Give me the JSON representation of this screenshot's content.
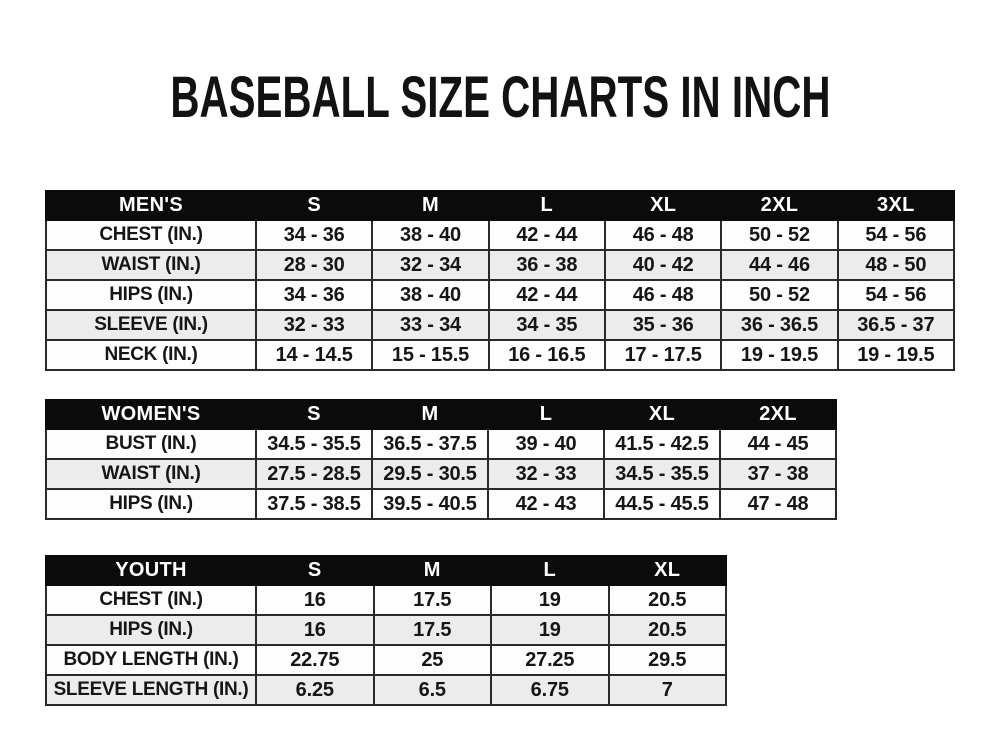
{
  "page": {
    "title": "BASEBALL SIZE CHARTS IN INCH"
  },
  "colors": {
    "header_bg": "#0b0b0b",
    "header_text": "#ffffff",
    "row_bg": "#fdfdfd",
    "row_alt_bg": "#ececec",
    "border": "#2a2a2a",
    "text": "#161616"
  },
  "tables": [
    {
      "name": "mens",
      "header_label": "MEN'S",
      "columns": [
        "S",
        "M",
        "L",
        "XL",
        "2XL",
        "3XL"
      ],
      "rows": [
        {
          "label": "CHEST (IN.)",
          "values": [
            "34 - 36",
            "38 - 40",
            "42 - 44",
            "46 - 48",
            "50 - 52",
            "54 - 56"
          ]
        },
        {
          "label": "WAIST (IN.)",
          "values": [
            "28 - 30",
            "32 - 34",
            "36 - 38",
            "40 - 42",
            "44 - 46",
            "48 - 50"
          ]
        },
        {
          "label": "HIPS (IN.)",
          "values": [
            "34 - 36",
            "38 - 40",
            "42 - 44",
            "46 - 48",
            "50 - 52",
            "54 - 56"
          ]
        },
        {
          "label": "SLEEVE (IN.)",
          "values": [
            "32 - 33",
            "33 - 34",
            "34 - 35",
            "35 - 36",
            "36 - 36.5",
            "36.5 - 37"
          ]
        },
        {
          "label": "NECK (IN.)",
          "values": [
            "14 - 14.5",
            "15 - 15.5",
            "16 - 16.5",
            "17 - 17.5",
            "19 - 19.5",
            "19 - 19.5"
          ]
        }
      ]
    },
    {
      "name": "womens",
      "header_label": "WOMEN'S",
      "columns": [
        "S",
        "M",
        "L",
        "XL",
        "2XL"
      ],
      "rows": [
        {
          "label": "BUST (IN.)",
          "values": [
            "34.5 - 35.5",
            "36.5 - 37.5",
            "39 - 40",
            "41.5 - 42.5",
            "44 - 45"
          ]
        },
        {
          "label": "WAIST (IN.)",
          "values": [
            "27.5 - 28.5",
            "29.5 - 30.5",
            "32 - 33",
            "34.5 - 35.5",
            "37 - 38"
          ]
        },
        {
          "label": "HIPS (IN.)",
          "values": [
            "37.5 - 38.5",
            "39.5 - 40.5",
            "42 - 43",
            "44.5 - 45.5",
            "47 - 48"
          ]
        }
      ]
    },
    {
      "name": "youth",
      "header_label": "YOUTH",
      "columns": [
        "S",
        "M",
        "L",
        "XL"
      ],
      "rows": [
        {
          "label": "CHEST (IN.)",
          "values": [
            "16",
            "17.5",
            "19",
            "20.5"
          ]
        },
        {
          "label": "HIPS (IN.)",
          "values": [
            "16",
            "17.5",
            "19",
            "20.5"
          ]
        },
        {
          "label": "BODY LENGTH (IN.)",
          "values": [
            "22.75",
            "25",
            "27.25",
            "29.5"
          ]
        },
        {
          "label": "SLEEVE LENGTH (IN.)",
          "values": [
            "6.25",
            "6.5",
            "6.75",
            "7"
          ]
        }
      ]
    }
  ]
}
